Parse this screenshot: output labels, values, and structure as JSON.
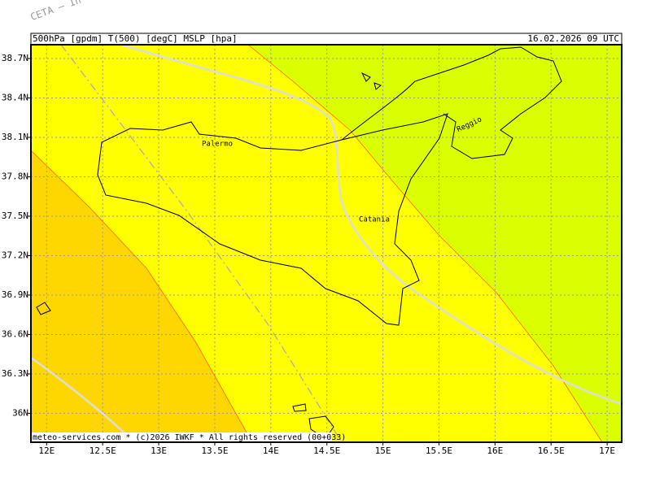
{
  "map": {
    "watermark": "CETA – In",
    "header_left": "500hPa [gpdm] T(500) [degC] MSLP [hpa]",
    "header_right": "16.02.2026 09 UTC",
    "footer": "meteo-services.com * (c)2026 IWKF * All rights reserved (00+033)",
    "places": [
      "Palermo",
      "Catania",
      "Reggio"
    ],
    "xlim": [
      11.86,
      17.13
    ],
    "ylim": [
      35.78,
      38.805
    ],
    "xticks": [
      {
        "value": 12,
        "label": "12E"
      },
      {
        "value": 12.5,
        "label": "12.5E"
      },
      {
        "value": 13,
        "label": "13E"
      },
      {
        "value": 13.5,
        "label": "13.5E"
      },
      {
        "value": 14,
        "label": "14E"
      },
      {
        "value": 14.5,
        "label": "14.5E"
      },
      {
        "value": 15,
        "label": "15E"
      },
      {
        "value": 15.5,
        "label": "15.5E"
      },
      {
        "value": 16,
        "label": "16E"
      },
      {
        "value": 16.5,
        "label": "16.5E"
      },
      {
        "value": 17,
        "label": "17E"
      }
    ],
    "yticks": [
      {
        "value": 38.7,
        "label": "38.7N"
      },
      {
        "value": 38.4,
        "label": "38.4N"
      },
      {
        "value": 38.1,
        "label": "38.1N"
      },
      {
        "value": 37.8,
        "label": "37.8N"
      },
      {
        "value": 37.5,
        "label": "37.5N"
      },
      {
        "value": 37.2,
        "label": "37.2N"
      },
      {
        "value": 36.9,
        "label": "36.9N"
      },
      {
        "value": 36.6,
        "label": "36.6N"
      },
      {
        "value": 36.3,
        "label": "36.3N"
      },
      {
        "value": 36,
        "label": "36N"
      }
    ]
  }
}
